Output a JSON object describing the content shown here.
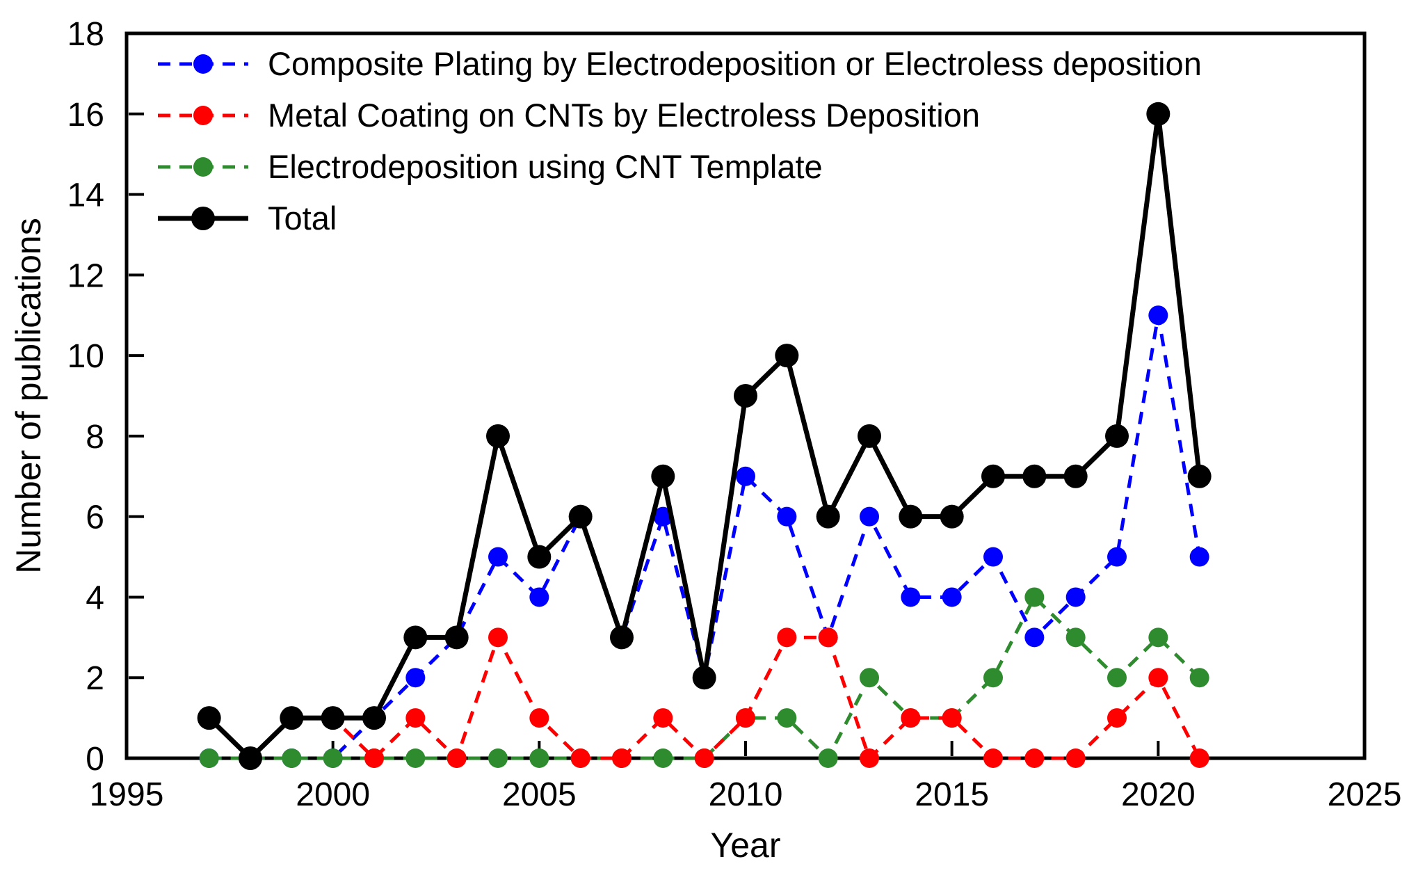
{
  "chart_data": {
    "type": "line",
    "title": "",
    "xlabel": "Year",
    "ylabel": "Number of publications",
    "xlim": [
      1995,
      2025
    ],
    "ylim": [
      0,
      18
    ],
    "xticks": [
      1995,
      2000,
      2005,
      2010,
      2015,
      2020,
      2025
    ],
    "yticks": [
      0,
      2,
      4,
      6,
      8,
      10,
      12,
      14,
      16,
      18
    ],
    "grid": false,
    "legend_position": "upper-left-inside",
    "background_color": "#ffffff",
    "axis_color": "#000000",
    "x": [
      1997,
      1998,
      1999,
      2000,
      2001,
      2002,
      2003,
      2004,
      2005,
      2006,
      2007,
      2008,
      2009,
      2010,
      2011,
      2012,
      2013,
      2014,
      2015,
      2016,
      2017,
      2018,
      2019,
      2020,
      2021
    ],
    "series": [
      {
        "name": "Composite Plating by Electrodeposition or Electroless deposition",
        "slug": "composite-plating",
        "color": "#0000FF",
        "dash": "dashed",
        "line_width": 5,
        "marker_radius": 14,
        "values": [
          0,
          0,
          0,
          0,
          1,
          2,
          3,
          5,
          4,
          6,
          3,
          6,
          2,
          7,
          6,
          3,
          6,
          4,
          4,
          5,
          3,
          4,
          5,
          11,
          5
        ]
      },
      {
        "name": "Metal Coating on CNTs by Electroless Deposition",
        "slug": "metal-coating",
        "color": "#FF0000",
        "dash": "dashed",
        "line_width": 5,
        "marker_radius": 14,
        "values": [
          1,
          0,
          1,
          1,
          0,
          1,
          0,
          3,
          1,
          0,
          0,
          1,
          0,
          1,
          3,
          3,
          0,
          1,
          1,
          0,
          0,
          0,
          1,
          2,
          0
        ]
      },
      {
        "name": "Electrodeposition using CNT Template",
        "slug": "cnt-template",
        "color": "#2E8B2E",
        "dash": "dashed",
        "line_width": 5,
        "marker_radius": 14,
        "values": [
          0,
          0,
          0,
          0,
          0,
          0,
          0,
          0,
          0,
          0,
          0,
          0,
          0,
          1,
          1,
          0,
          2,
          1,
          1,
          2,
          4,
          3,
          2,
          3,
          2
        ]
      },
      {
        "name": "Total",
        "slug": "total",
        "color": "#000000",
        "dash": "solid",
        "line_width": 7,
        "marker_radius": 17,
        "values": [
          1,
          0,
          1,
          1,
          1,
          3,
          3,
          8,
          5,
          6,
          3,
          7,
          2,
          9,
          10,
          6,
          8,
          6,
          6,
          7,
          7,
          7,
          8,
          16,
          7
        ]
      }
    ],
    "draw_order": [
      0,
      2,
      1,
      3
    ]
  }
}
